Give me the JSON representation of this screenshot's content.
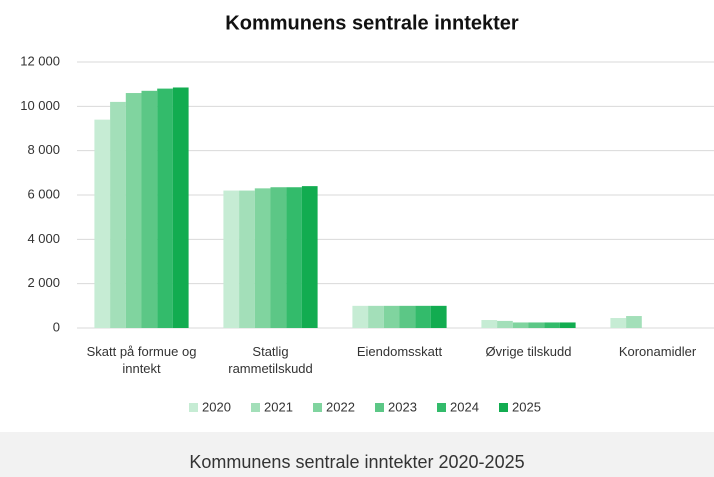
{
  "chart_data": {
    "type": "bar",
    "title": "Kommunens sentrale inntekter",
    "caption": "Kommunens sentrale inntekter 2020-2025",
    "categories": [
      "Skatt på formue og inntekt",
      "Statlig rammetilskudd",
      "Eiendomsskatt",
      "Øvrige tilskudd",
      "Koronamidler"
    ],
    "series": [
      {
        "name": "2020",
        "color": "#c6ecd4",
        "values": [
          9400,
          6200,
          1000,
          360,
          450
        ]
      },
      {
        "name": "2021",
        "color": "#a3dfb9",
        "values": [
          10200,
          6200,
          1000,
          320,
          540
        ]
      },
      {
        "name": "2022",
        "color": "#80d49f",
        "values": [
          10600,
          6300,
          1000,
          250,
          0
        ]
      },
      {
        "name": "2023",
        "color": "#5cc786",
        "values": [
          10700,
          6350,
          1000,
          250,
          0
        ]
      },
      {
        "name": "2024",
        "color": "#33bb6b",
        "values": [
          10800,
          6350,
          1000,
          250,
          0
        ]
      },
      {
        "name": "2025",
        "color": "#12ac50",
        "values": [
          10850,
          6400,
          1000,
          250,
          0
        ]
      }
    ],
    "ylim": [
      0,
      12000
    ],
    "yticks": [
      0,
      {
        "value": 2000,
        "label": "2 000"
      },
      {
        "value": 4000,
        "label": "4 000"
      },
      {
        "value": 6000,
        "label": "6 000"
      },
      {
        "value": 8000,
        "label": "8 000"
      },
      {
        "value": 10000,
        "label": "10 000"
      },
      {
        "value": 12000,
        "label": "12 000"
      }
    ],
    "grid": true,
    "legend": "bottom"
  }
}
